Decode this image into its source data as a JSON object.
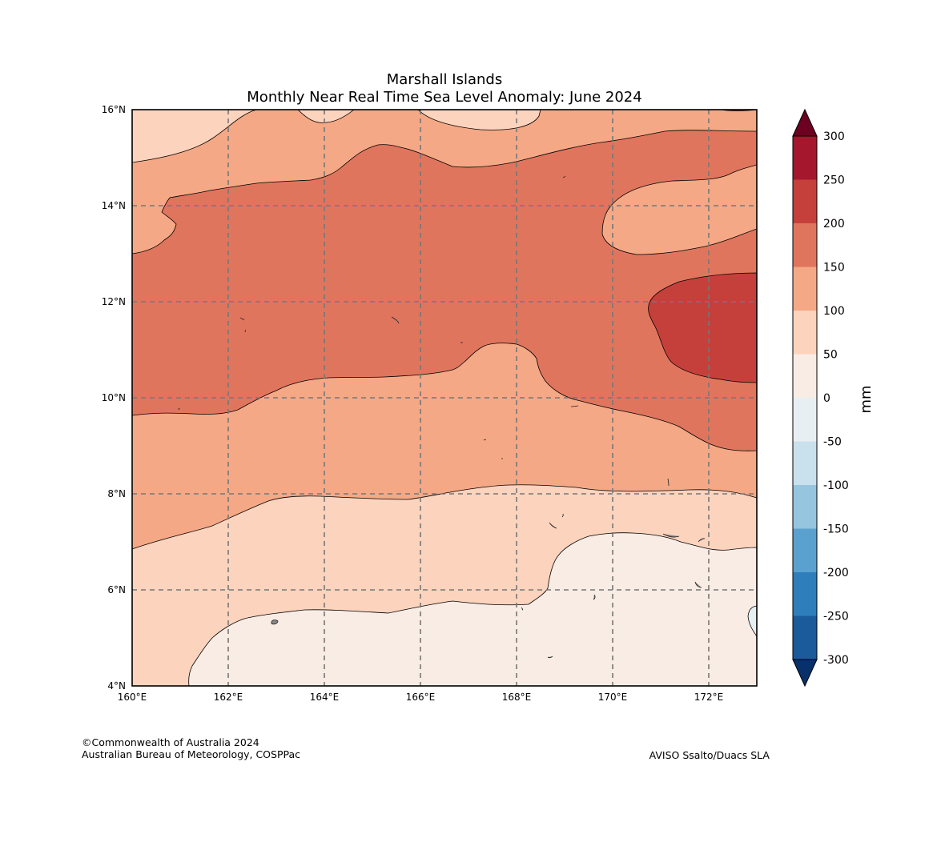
{
  "map": {
    "title_line1": "Marshall Islands",
    "title_line2": "Monthly Near Real Time Sea Level Anomaly: June 2024",
    "x_ticks": [
      "160°E",
      "162°E",
      "164°E",
      "166°E",
      "168°E",
      "170°E",
      "172°E"
    ],
    "y_ticks": [
      "16°N",
      "14°N",
      "12°N",
      "10°N",
      "8°N",
      "6°N",
      "4°N"
    ],
    "lon_range": [
      160,
      173
    ],
    "lat_range": [
      4,
      16
    ]
  },
  "colorbar": {
    "label": "mm",
    "ticks": [
      "300",
      "250",
      "200",
      "150",
      "100",
      "50",
      "0",
      "-50",
      "-100",
      "-150",
      "-200",
      "-250",
      "-300"
    ],
    "levels": [
      -300,
      -250,
      -200,
      -150,
      -100,
      -50,
      0,
      50,
      100,
      150,
      200,
      250,
      300
    ],
    "colors": {
      "below_min": "#08306b",
      "n300_n250": "#1b5a9b",
      "n250_n200": "#2e7ebb",
      "n200_n150": "#5aa1cf",
      "n150_n100": "#96c5df",
      "n100_n50": "#c9e0ed",
      "n50_0": "#e8eff3",
      "p0_50": "#f8ece5",
      "p50_100": "#fcd3bd",
      "p100_150": "#f5a885",
      "p150_200": "#e0755e",
      "p200_250": "#c6403b",
      "p250_300": "#a5172c",
      "above_max": "#6c0121"
    }
  },
  "credits": {
    "copyright": "©Commonwealth of Australia 2024",
    "agency": "Australian Bureau of Meteorology, COSPPac",
    "source": "AVISO Ssalto/Duacs SLA"
  }
}
